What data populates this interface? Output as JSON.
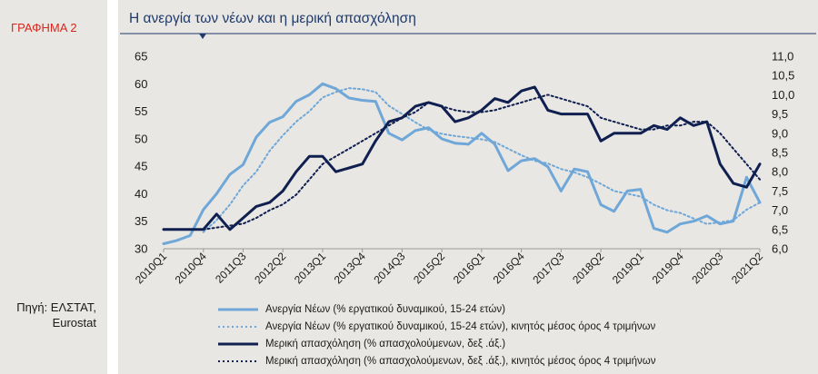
{
  "figure_label": "ΓΡΑΦΗΜΑ 2",
  "source_lines": [
    "Πηγή: ΕΛΣΤΑΤ,",
    "Eurostat"
  ],
  "chart_data": {
    "type": "line",
    "title": "Η ανεργία των νέων και η μερική απασχόληση",
    "x_tick_labels": [
      "2010Q1",
      "2010Q4",
      "2011Q3",
      "2012Q2",
      "2013Q1",
      "2013Q4",
      "2014Q3",
      "2015Q2",
      "2016Q1",
      "2016Q4",
      "2017Q3",
      "2018Q2",
      "2019Q1",
      "2019Q4",
      "2020Q3",
      "2021Q2"
    ],
    "x": [
      "2010Q1",
      "2010Q2",
      "2010Q3",
      "2010Q4",
      "2011Q1",
      "2011Q2",
      "2011Q3",
      "2011Q4",
      "2012Q1",
      "2012Q2",
      "2012Q3",
      "2012Q4",
      "2013Q1",
      "2013Q2",
      "2013Q3",
      "2013Q4",
      "2014Q1",
      "2014Q2",
      "2014Q3",
      "2014Q4",
      "2015Q1",
      "2015Q2",
      "2015Q3",
      "2015Q4",
      "2016Q1",
      "2016Q2",
      "2016Q3",
      "2016Q4",
      "2017Q1",
      "2017Q2",
      "2017Q3",
      "2017Q4",
      "2018Q1",
      "2018Q2",
      "2018Q3",
      "2018Q4",
      "2019Q1",
      "2019Q2",
      "2019Q3",
      "2019Q4",
      "2020Q1",
      "2020Q2",
      "2020Q3",
      "2020Q4",
      "2021Q1",
      "2021Q2"
    ],
    "y_left": {
      "min": 30,
      "max": 65,
      "ticks": [
        30,
        35,
        40,
        45,
        50,
        55,
        60,
        65
      ]
    },
    "y_right": {
      "min": 6.0,
      "max": 11.0,
      "ticks": [
        "6,0",
        "6,5",
        "7,0",
        "7,5",
        "8,0",
        "8,5",
        "9,0",
        "9,5",
        "10,0",
        "10,5",
        "11,0"
      ]
    },
    "series": [
      {
        "name": "Ανεργία Νέων (% εργατικού δυναμικού, 15-24 ετών)",
        "axis": "left",
        "style": "solid",
        "color": "#6fa7d8",
        "width": 3,
        "values": [
          30.9,
          31.5,
          32.4,
          37.1,
          40.0,
          43.5,
          45.3,
          50.3,
          53.0,
          54.0,
          56.8,
          58.0,
          60.0,
          59.1,
          57.4,
          57.0,
          56.8,
          51.0,
          49.8,
          51.5,
          52.0,
          50.0,
          49.2,
          49.0,
          51.0,
          49.0,
          44.2,
          46.0,
          46.4,
          44.9,
          40.5,
          44.5,
          44.0,
          38.0,
          36.8,
          40.5,
          40.8,
          33.7,
          33.0,
          34.5,
          35.0,
          36.0,
          34.5,
          35.0,
          43.0,
          38.4
        ]
      },
      {
        "name": "Ανεργία Νέων (% εργατικού δυναμικού, 15-24 ετών), κινητός μέσος όρος 4 τριμήνων",
        "axis": "left",
        "style": "dotted",
        "color": "#6fa7d8",
        "width": 2,
        "values": [
          null,
          null,
          null,
          33.0,
          35.2,
          38.0,
          41.5,
          44.0,
          47.8,
          50.6,
          53.1,
          55.0,
          57.5,
          58.5,
          59.2,
          59.0,
          58.5,
          56.0,
          54.5,
          53.0,
          51.6,
          50.9,
          50.5,
          50.2,
          49.9,
          49.4,
          48.2,
          47.0,
          46.0,
          45.5,
          44.5,
          43.9,
          43.0,
          41.8,
          40.5,
          40.0,
          39.5,
          38.0,
          37.0,
          36.5,
          35.5,
          34.5,
          34.8,
          35.2,
          37.1,
          38.4
        ]
      },
      {
        "name": "Μερική απασχόληση (% απασχολούμενων, δεξ .άξ.)",
        "axis": "right",
        "style": "solid",
        "color": "#0f1f4f",
        "width": 3,
        "values": [
          6.5,
          6.5,
          6.5,
          6.5,
          6.9,
          6.5,
          6.8,
          7.1,
          7.2,
          7.5,
          8.0,
          8.4,
          8.4,
          8.0,
          8.1,
          8.2,
          8.8,
          9.3,
          9.4,
          9.7,
          9.8,
          9.7,
          9.3,
          9.4,
          9.6,
          9.9,
          9.8,
          10.1,
          10.2,
          9.6,
          9.5,
          9.5,
          9.5,
          8.8,
          9.0,
          9.0,
          9.0,
          9.2,
          9.1,
          9.4,
          9.2,
          9.3,
          8.2,
          7.7,
          7.6,
          8.2
        ]
      },
      {
        "name": "Μερική απασχόληση (% απασχολούμενων, δεξ .άξ.), κινητός μέσος όρος 4 τριμήνων",
        "axis": "right",
        "style": "dotted",
        "color": "#0f1f4f",
        "width": 2,
        "values": [
          null,
          null,
          null,
          6.5,
          6.55,
          6.6,
          6.65,
          6.8,
          7.0,
          7.15,
          7.4,
          7.8,
          8.2,
          8.4,
          8.6,
          8.8,
          9.0,
          9.2,
          9.4,
          9.55,
          9.8,
          9.7,
          9.6,
          9.55,
          9.55,
          9.6,
          9.7,
          9.8,
          9.9,
          10.0,
          9.9,
          9.8,
          9.7,
          9.4,
          9.3,
          9.2,
          9.1,
          9.1,
          9.2,
          9.2,
          9.3,
          9.3,
          9.0,
          8.6,
          8.2,
          7.8
        ]
      }
    ]
  }
}
